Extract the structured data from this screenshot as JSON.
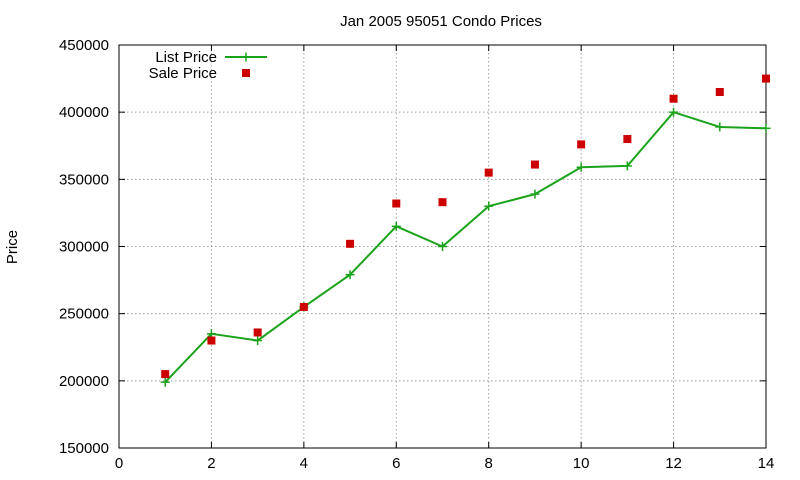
{
  "chart_data": {
    "type": "line",
    "title": "Jan 2005 95051 Condo Prices",
    "xlabel": "",
    "ylabel": "Price",
    "xlim": [
      0,
      14
    ],
    "ylim": [
      150000,
      450000
    ],
    "x_ticks": [
      0,
      2,
      4,
      6,
      8,
      10,
      12,
      14
    ],
    "y_ticks": [
      150000,
      200000,
      250000,
      300000,
      350000,
      400000,
      450000
    ],
    "x_tick_labels": [
      "0",
      "2",
      "4",
      "6",
      "8",
      "10",
      "12",
      "14"
    ],
    "y_tick_labels": [
      "150000",
      "200000",
      "250000",
      "300000",
      "350000",
      "400000",
      "450000"
    ],
    "grid": true,
    "legend_position": "top-left",
    "series": [
      {
        "name": "List Price",
        "style": "linespoints",
        "marker": "plus",
        "color": "#1aa31a",
        "x": [
          1,
          2,
          3,
          4,
          5,
          6,
          7,
          8,
          9,
          10,
          11,
          12,
          13,
          14
        ],
        "values": [
          199000,
          235000,
          230000,
          255000,
          279000,
          315000,
          300000,
          330000,
          339000,
          359000,
          360000,
          400000,
          389000,
          388000
        ]
      },
      {
        "name": "Sale Price",
        "style": "points",
        "marker": "square",
        "color": "#cc0000",
        "x": [
          1,
          2,
          3,
          4,
          5,
          6,
          7,
          8,
          9,
          10,
          11,
          12,
          13,
          14
        ],
        "values": [
          205000,
          230000,
          236000,
          255000,
          302000,
          332000,
          333000,
          355000,
          361000,
          376000,
          380000,
          410000,
          415000,
          425000
        ]
      }
    ]
  }
}
